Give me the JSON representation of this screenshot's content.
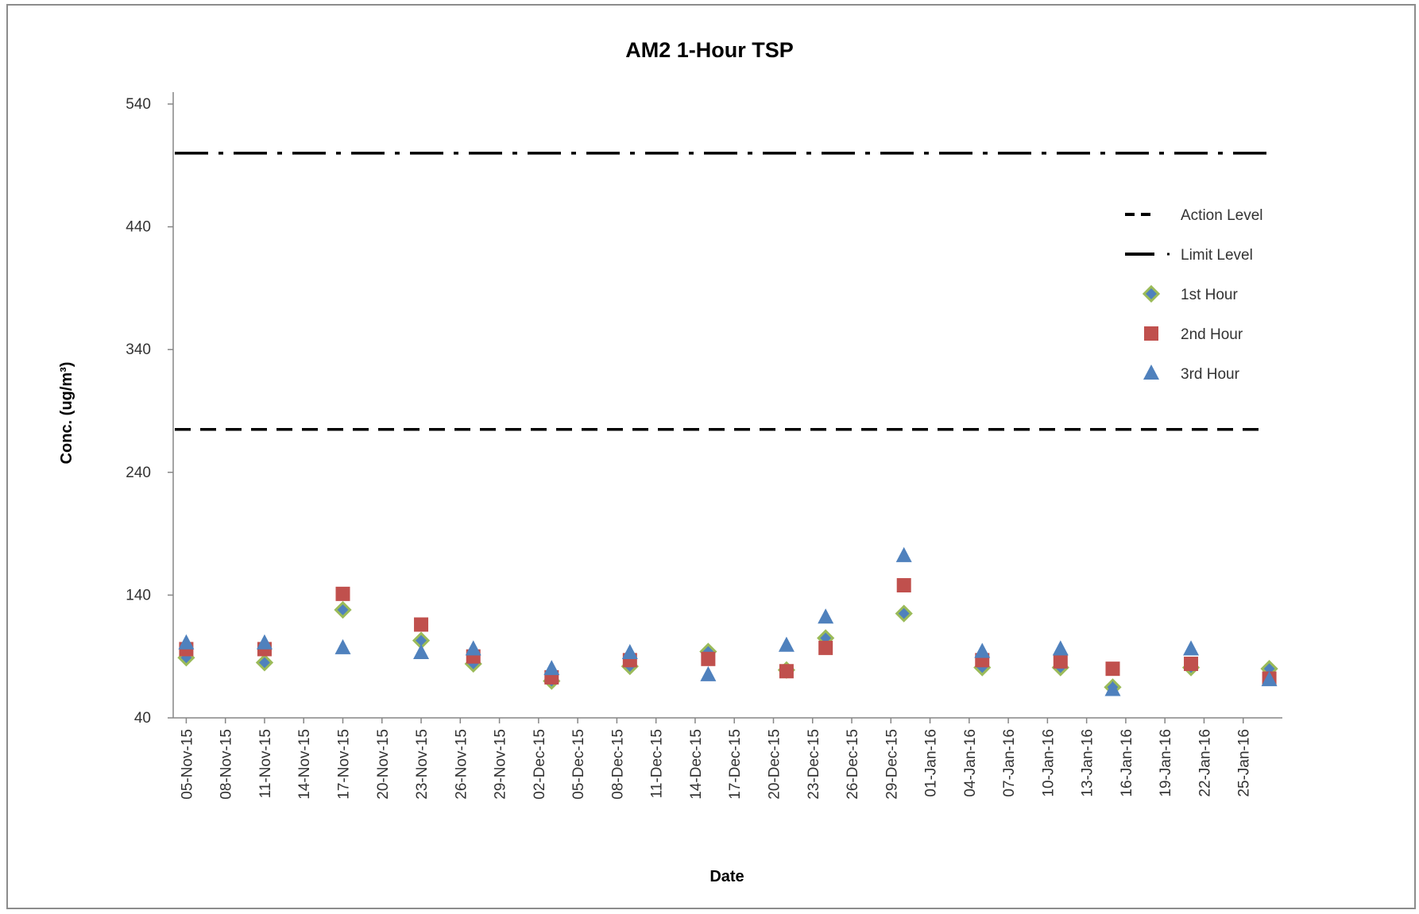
{
  "chart_data": {
    "type": "scatter",
    "title": "AM2 1-Hour TSP",
    "xlabel": "Date",
    "ylabel": "Conc. (ug/m³)",
    "ylim": [
      40,
      540
    ],
    "yticks": [
      40,
      140,
      240,
      340,
      440,
      540
    ],
    "xlim": [
      "2015-11-04",
      "2016-01-28"
    ],
    "xtick_labels": [
      "05-Nov-15",
      "08-Nov-15",
      "11-Nov-15",
      "14-Nov-15",
      "17-Nov-15",
      "20-Nov-15",
      "23-Nov-15",
      "26-Nov-15",
      "29-Nov-15",
      "02-Dec-15",
      "05-Dec-15",
      "08-Dec-15",
      "11-Dec-15",
      "14-Dec-15",
      "17-Dec-15",
      "20-Dec-15",
      "23-Dec-15",
      "26-Dec-15",
      "29-Dec-15",
      "01-Jan-16",
      "04-Jan-16",
      "07-Jan-16",
      "10-Jan-16",
      "13-Jan-16",
      "16-Jan-16",
      "19-Jan-16",
      "22-Jan-16",
      "25-Jan-16"
    ],
    "grid": false,
    "legend_position": "right",
    "colors": {
      "first_hour": "#4F81BD",
      "first_hour_outline": "#9BBB59",
      "second_hour": "#C0504D",
      "third_hour": "#4F81BD",
      "reference_lines": "#000000"
    },
    "reference_lines": [
      {
        "name": "Action Level",
        "value": 275,
        "style": "dashed"
      },
      {
        "name": "Limit Level",
        "value": 500,
        "style": "dash-dot"
      }
    ],
    "series": [
      {
        "name": "1st Hour",
        "marker": "diamond",
        "points": [
          {
            "x": "2015-11-05",
            "y": 89
          },
          {
            "x": "2015-11-11",
            "y": 85
          },
          {
            "x": "2015-11-17",
            "y": 128
          },
          {
            "x": "2015-11-23",
            "y": 103
          },
          {
            "x": "2015-11-27",
            "y": 84
          },
          {
            "x": "2015-12-03",
            "y": 70
          },
          {
            "x": "2015-12-09",
            "y": 82
          },
          {
            "x": "2015-12-15",
            "y": 94
          },
          {
            "x": "2015-12-21",
            "y": 79
          },
          {
            "x": "2015-12-24",
            "y": 105
          },
          {
            "x": "2015-12-30",
            "y": 125
          },
          {
            "x": "2016-01-05",
            "y": 81
          },
          {
            "x": "2016-01-11",
            "y": 81
          },
          {
            "x": "2016-01-15",
            "y": 65
          },
          {
            "x": "2016-01-21",
            "y": 81
          },
          {
            "x": "2016-01-27",
            "y": 80
          }
        ]
      },
      {
        "name": "2nd Hour",
        "marker": "square",
        "points": [
          {
            "x": "2015-11-05",
            "y": 96
          },
          {
            "x": "2015-11-11",
            "y": 96
          },
          {
            "x": "2015-11-17",
            "y": 141
          },
          {
            "x": "2015-11-23",
            "y": 116
          },
          {
            "x": "2015-11-27",
            "y": 90
          },
          {
            "x": "2015-12-03",
            "y": 73
          },
          {
            "x": "2015-12-09",
            "y": 87
          },
          {
            "x": "2015-12-15",
            "y": 88
          },
          {
            "x": "2015-12-21",
            "y": 78
          },
          {
            "x": "2015-12-24",
            "y": 97
          },
          {
            "x": "2015-12-30",
            "y": 148
          },
          {
            "x": "2016-01-05",
            "y": 87
          },
          {
            "x": "2016-01-11",
            "y": 86
          },
          {
            "x": "2016-01-15",
            "y": 80
          },
          {
            "x": "2016-01-21",
            "y": 84
          },
          {
            "x": "2016-01-27",
            "y": 72
          }
        ]
      },
      {
        "name": "3rd Hour",
        "marker": "triangle",
        "points": [
          {
            "x": "2015-11-05",
            "y": 101
          },
          {
            "x": "2015-11-11",
            "y": 101
          },
          {
            "x": "2015-11-17",
            "y": 97
          },
          {
            "x": "2015-11-23",
            "y": 93
          },
          {
            "x": "2015-11-27",
            "y": 96
          },
          {
            "x": "2015-12-03",
            "y": 80
          },
          {
            "x": "2015-12-09",
            "y": 93
          },
          {
            "x": "2015-12-15",
            "y": 75
          },
          {
            "x": "2015-12-21",
            "y": 99
          },
          {
            "x": "2015-12-24",
            "y": 122
          },
          {
            "x": "2015-12-30",
            "y": 172
          },
          {
            "x": "2016-01-05",
            "y": 94
          },
          {
            "x": "2016-01-11",
            "y": 96
          },
          {
            "x": "2016-01-15",
            "y": 63
          },
          {
            "x": "2016-01-21",
            "y": 96
          },
          {
            "x": "2016-01-27",
            "y": 71
          }
        ]
      }
    ]
  }
}
